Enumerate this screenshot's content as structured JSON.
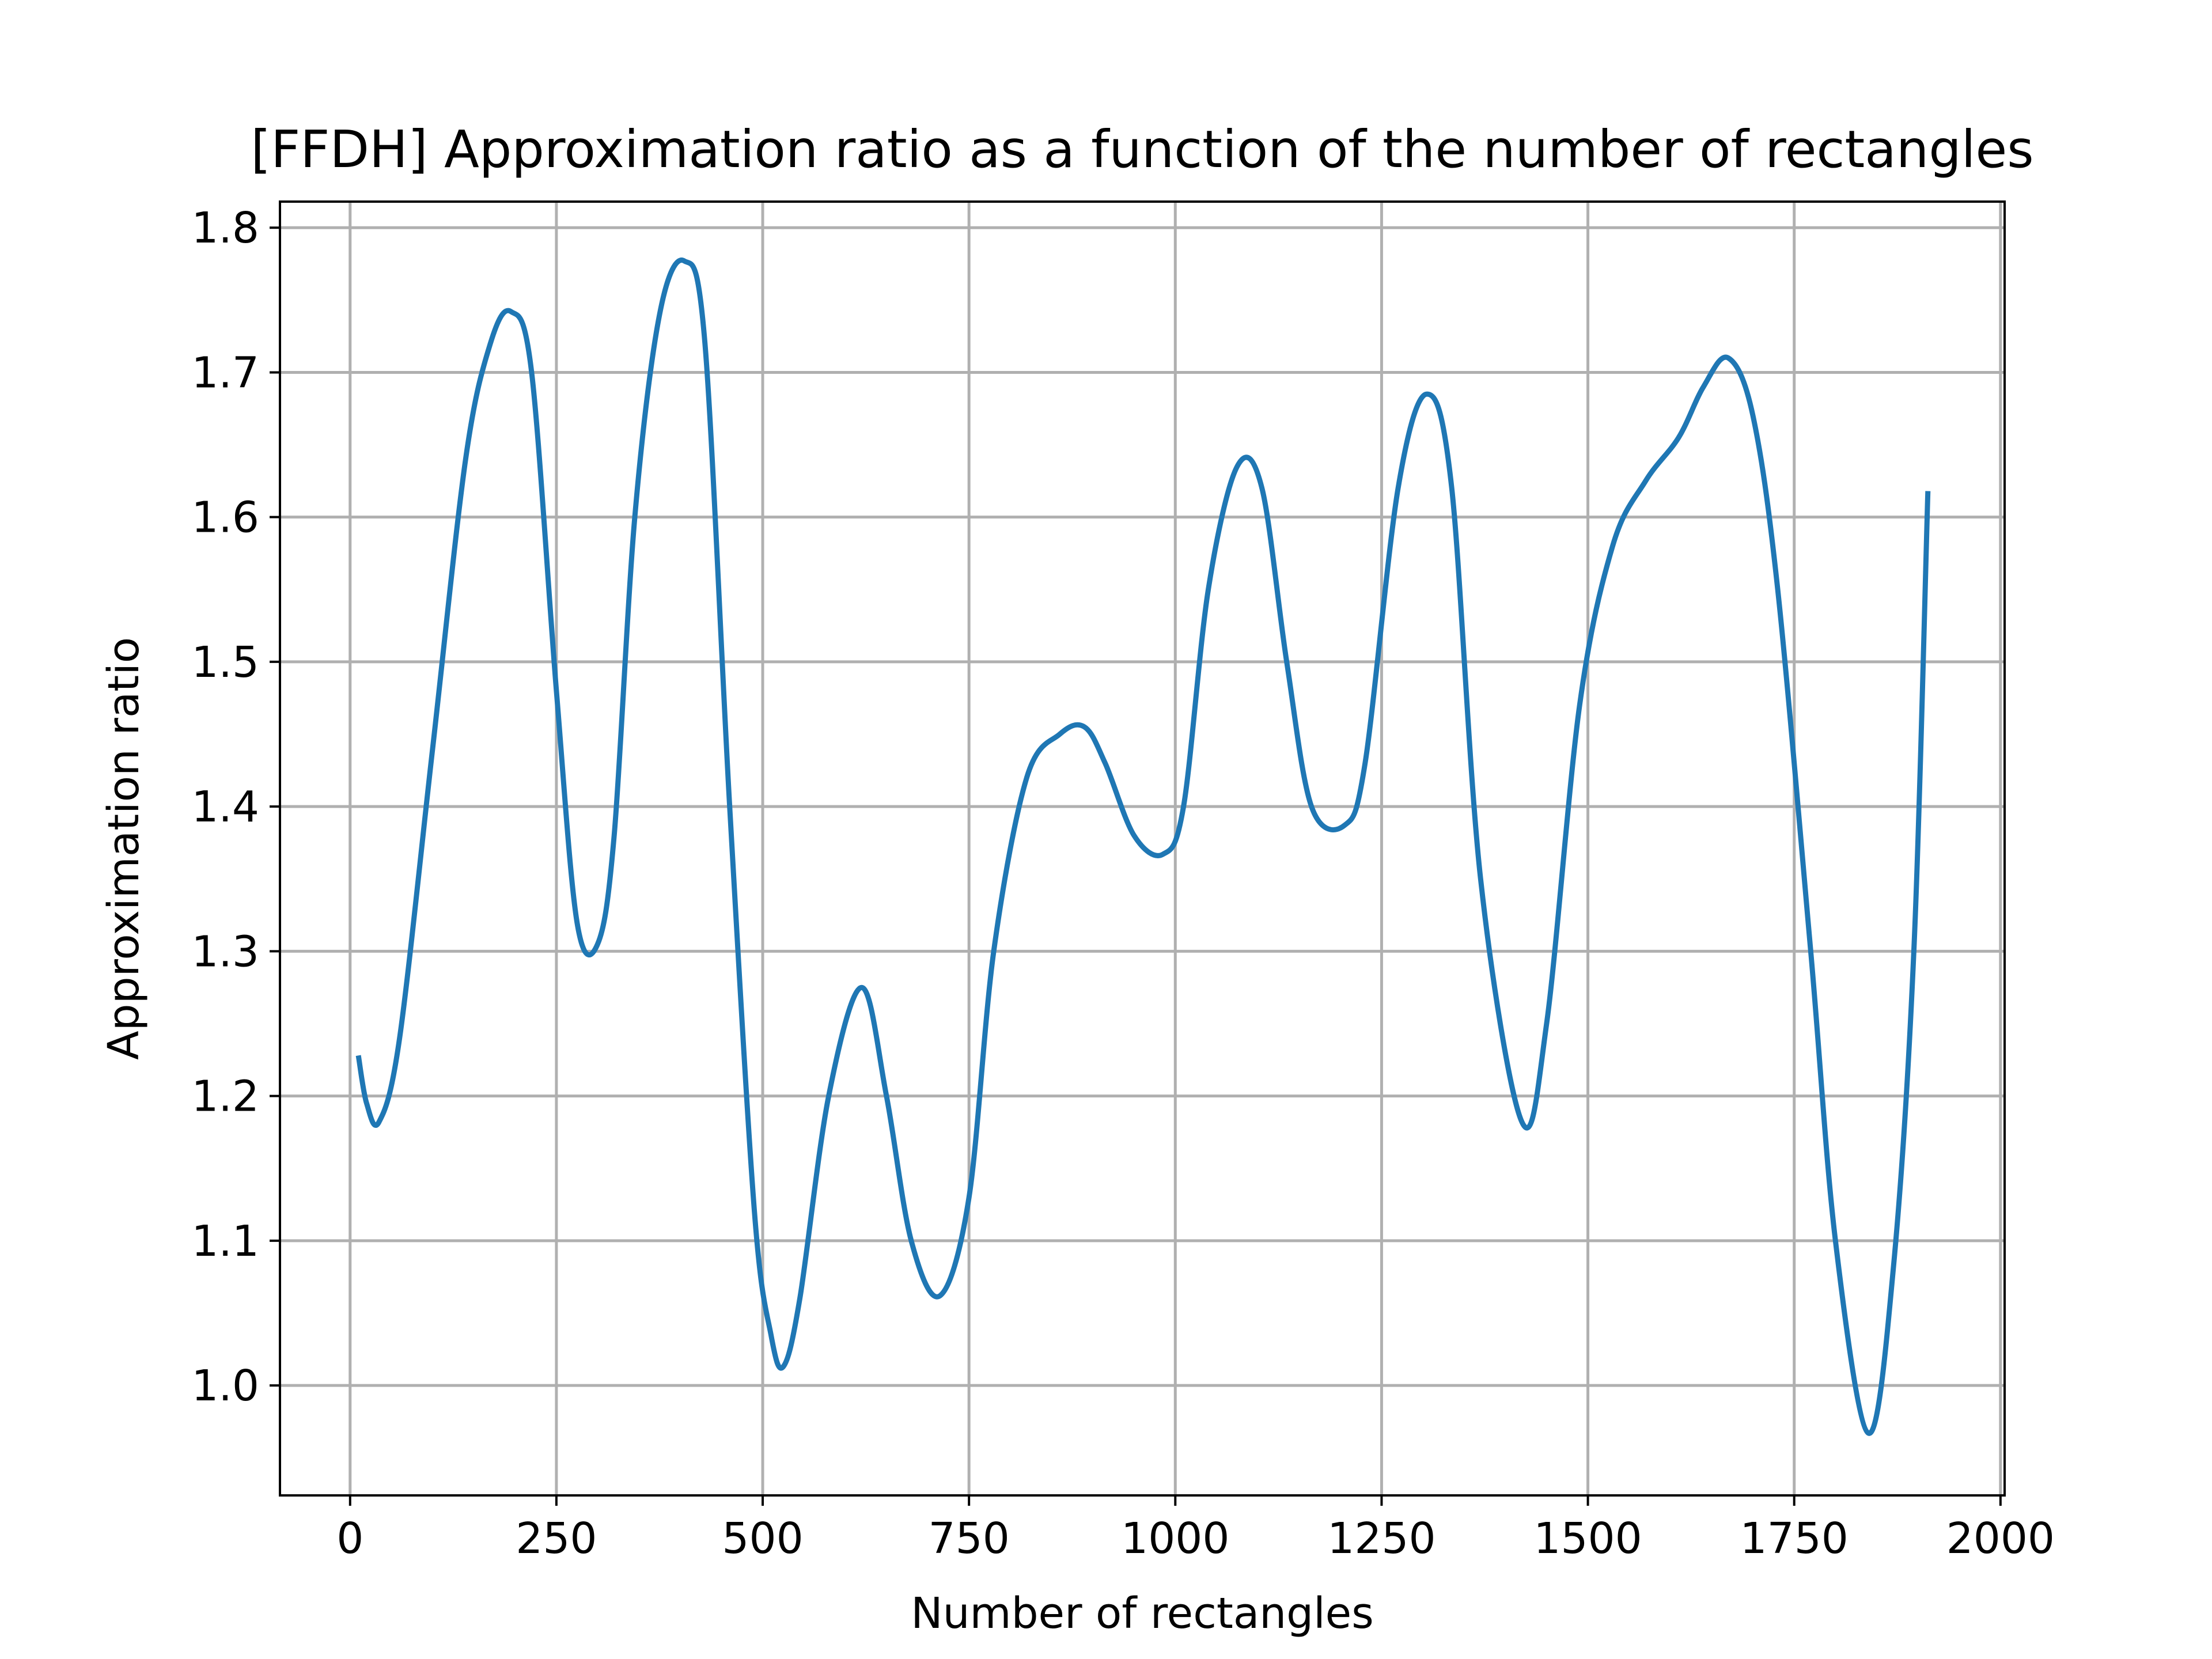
{
  "chart_data": {
    "type": "line",
    "title": "[FFDH] Approximation ratio as a function of the number of rectangles",
    "xlabel": "Number of rectangles",
    "ylabel": "Approximation ratio",
    "xlim": [
      -85,
      2005
    ],
    "ylim": [
      0.924,
      1.818
    ],
    "grid": true,
    "legend": "none",
    "x_ticks": [
      0,
      250,
      500,
      750,
      1000,
      1250,
      1500,
      1750,
      2000
    ],
    "x_tick_labels": [
      "0",
      "250",
      "500",
      "750",
      "1000",
      "1250",
      "1500",
      "1750",
      "2000"
    ],
    "y_ticks": [
      1.0,
      1.1,
      1.2,
      1.3,
      1.4,
      1.5,
      1.6,
      1.7,
      1.8
    ],
    "y_tick_labels": [
      "1.0",
      "1.1",
      "1.2",
      "1.3",
      "1.4",
      "1.5",
      "1.6",
      "1.7",
      "1.8"
    ],
    "series": [
      {
        "color": "#1f77b4",
        "x": [
          10,
          20,
          35,
          60,
          100,
          140,
          170,
          195,
          220,
          250,
          275,
          300,
          320,
          345,
          375,
          405,
          430,
          460,
          490,
          510,
          525,
          545,
          580,
          620,
          650,
          680,
          715,
          750,
          780,
          820,
          860,
          890,
          915,
          950,
          985,
          1010,
          1040,
          1075,
          1105,
          1135,
          1165,
          1205,
          1230,
          1270,
          1305,
          1335,
          1370,
          1420,
          1450,
          1490,
          1530,
          1570,
          1610,
          1640,
          1670,
          1700,
          1730,
          1770,
          1800,
          1840,
          1870,
          1895,
          1912
        ],
        "y": [
          1.228,
          1.195,
          1.182,
          1.24,
          1.44,
          1.64,
          1.72,
          1.742,
          1.7,
          1.48,
          1.32,
          1.305,
          1.38,
          1.6,
          1.74,
          1.777,
          1.72,
          1.4,
          1.12,
          1.035,
          1.013,
          1.06,
          1.2,
          1.275,
          1.2,
          1.1,
          1.062,
          1.13,
          1.3,
          1.42,
          1.45,
          1.455,
          1.43,
          1.38,
          1.367,
          1.4,
          1.55,
          1.635,
          1.62,
          1.5,
          1.4,
          1.387,
          1.43,
          1.62,
          1.685,
          1.62,
          1.35,
          1.182,
          1.25,
          1.47,
          1.58,
          1.625,
          1.655,
          1.69,
          1.71,
          1.67,
          1.55,
          1.3,
          1.1,
          0.967,
          1.08,
          1.3,
          1.618
        ]
      }
    ]
  }
}
